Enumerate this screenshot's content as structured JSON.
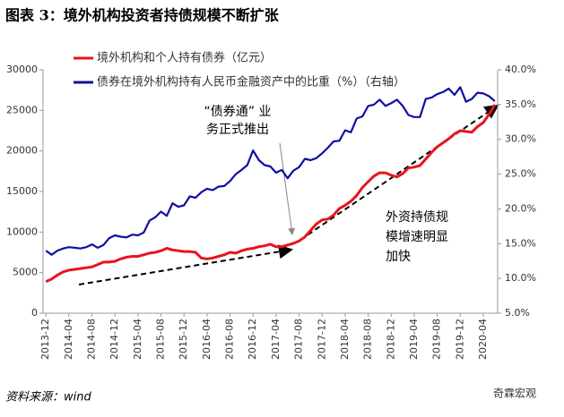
{
  "chart_data": {
    "type": "line",
    "title": "图表 3：境外机构投资者持债规模不断扩张",
    "source": "资料来源：wind",
    "watermark": "奇霖宏观",
    "categories": [
      "2013-12",
      null,
      null,
      null,
      "2014-04",
      null,
      null,
      null,
      "2014-08",
      null,
      null,
      null,
      "2014-12",
      null,
      null,
      null,
      "2015-04",
      null,
      null,
      null,
      "2015-08",
      null,
      null,
      null,
      "2015-12",
      null,
      null,
      null,
      "2016-04",
      null,
      null,
      null,
      "2016-08",
      null,
      null,
      null,
      "2016-12",
      null,
      null,
      null,
      "2017-04",
      null,
      null,
      null,
      "2017-08",
      null,
      null,
      null,
      "2017-12",
      null,
      null,
      null,
      "2018-04",
      null,
      null,
      null,
      "2018-08",
      null,
      null,
      null,
      "2018-12",
      null,
      null,
      null,
      "2019-04",
      null,
      null,
      null,
      "2019-08",
      null,
      null,
      null,
      "2019-12",
      null,
      null,
      null,
      "2020-04",
      null,
      null
    ],
    "series": [
      {
        "name": "境外机构和个人持有债券（亿元）",
        "color": "#e8141b",
        "values": [
          3900,
          4200,
          4700,
          5100,
          5300,
          5400,
          5500,
          5600,
          5700,
          6000,
          6300,
          6300,
          6400,
          6700,
          6900,
          7000,
          7000,
          7200,
          7400,
          7500,
          7700,
          8000,
          7800,
          7700,
          7600,
          7600,
          7500,
          6800,
          6700,
          6800,
          7000,
          7200,
          7500,
          7400,
          7700,
          7900,
          8000,
          8200,
          8300,
          8500,
          8200,
          8200,
          8400,
          8600,
          8900,
          9400,
          10200,
          11000,
          11500,
          11600,
          12100,
          12900,
          13300,
          13800,
          14500,
          15500,
          16200,
          16900,
          17300,
          17300,
          17000,
          16800,
          17200,
          17900,
          18000,
          18200,
          19000,
          19800,
          20500,
          21000,
          21500,
          22100,
          22500,
          22400,
          22300,
          23000,
          23500,
          24500,
          25700
        ]
      },
      {
        "name": "债券在境外机构持有人民币金融资产中的比重（%）（右轴）",
        "color": "#1010a0",
        "axis": "y2",
        "values": [
          14.0,
          13.4,
          14.0,
          14.3,
          14.5,
          14.4,
          14.3,
          14.5,
          14.9,
          14.4,
          14.8,
          15.8,
          16.2,
          16.0,
          15.9,
          16.3,
          16.2,
          16.6,
          18.3,
          18.8,
          19.6,
          19.0,
          20.8,
          20.3,
          20.5,
          21.8,
          21.6,
          22.4,
          22.9,
          22.7,
          23.2,
          23.3,
          24.0,
          25.0,
          25.6,
          26.3,
          28.4,
          27.0,
          26.3,
          26.1,
          25.2,
          25.6,
          24.4,
          25.5,
          26.0,
          27.2,
          27.0,
          27.3,
          28.0,
          28.8,
          29.7,
          29.8,
          31.3,
          31.0,
          33.0,
          33.3,
          34.8,
          35.0,
          35.7,
          34.8,
          35.2,
          35.7,
          34.8,
          33.5,
          33.2,
          33.2,
          35.8,
          36.0,
          36.5,
          36.8,
          37.3,
          36.4,
          37.5,
          35.4,
          35.8,
          36.7,
          36.6,
          36.2,
          35.5
        ]
      }
    ],
    "ylim": [
      0,
      30000
    ],
    "yticks": [
      0,
      5000,
      10000,
      15000,
      20000,
      25000,
      30000
    ],
    "y2lim": [
      5,
      40
    ],
    "y2ticks": [
      {
        "value": 5,
        "label": "5.0%"
      },
      {
        "value": 10,
        "label": "10.0%"
      },
      {
        "value": 15,
        "label": "15.0%"
      },
      {
        "value": 20,
        "label": "20.0%"
      },
      {
        "value": 25,
        "label": "25.0%"
      },
      {
        "value": 30,
        "label": "30.0%"
      },
      {
        "value": 35,
        "label": "35.0%"
      },
      {
        "value": 40,
        "label": "40.0%"
      }
    ],
    "annotations": [
      [
        "“债券通” 业",
        "务正式推出"
      ],
      [
        "外资持债规",
        "模增速明显",
        "加快"
      ]
    ]
  }
}
